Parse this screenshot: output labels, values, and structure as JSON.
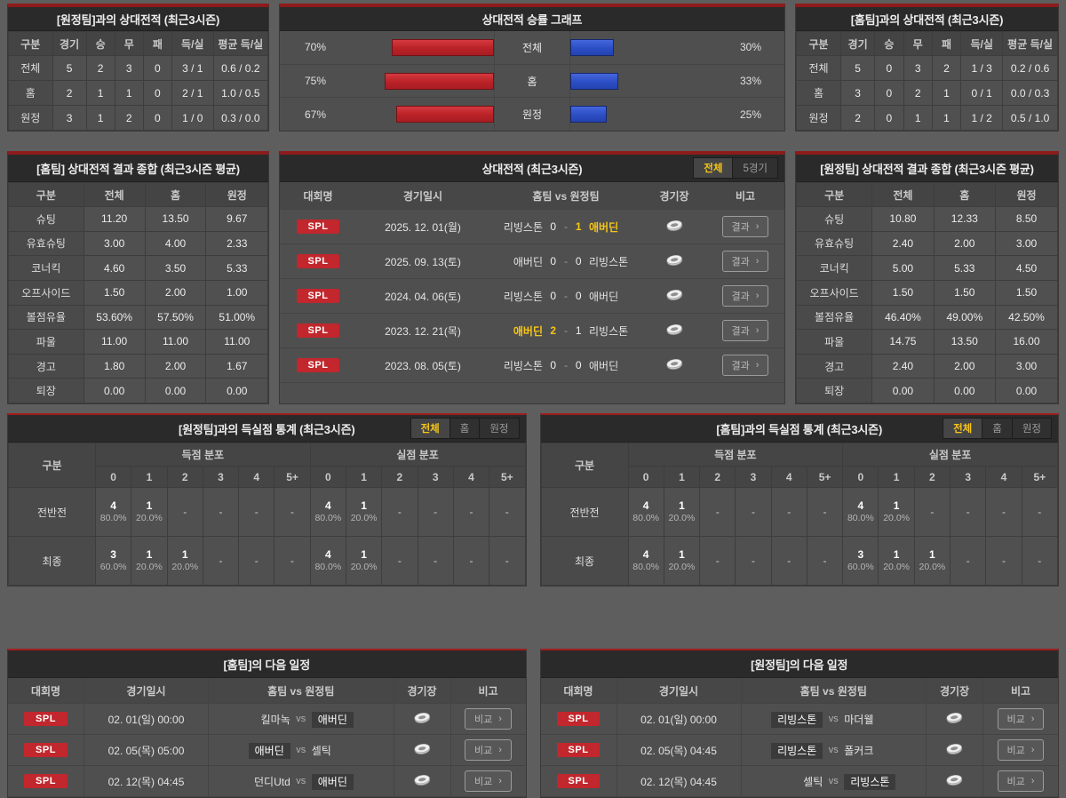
{
  "colors": {
    "accent_red": "#c1272d",
    "bar_red": "#b92228",
    "bar_blue": "#2c4ec4",
    "highlight_yellow": "#f5c518"
  },
  "panels": {
    "record_vs_away": {
      "title": "[원정팀]과의 상대전적 (최근3시즌)",
      "headers": [
        "구분",
        "경기",
        "승",
        "무",
        "패",
        "득/실",
        "평균 득/실"
      ],
      "rows": [
        [
          "전체",
          "5",
          "2",
          "3",
          "0",
          "3 / 1",
          "0.6 / 0.2"
        ],
        [
          "홈",
          "2",
          "1",
          "1",
          "0",
          "2 / 1",
          "1.0 / 0.5"
        ],
        [
          "원정",
          "3",
          "1",
          "2",
          "0",
          "1 / 0",
          "0.3 / 0.0"
        ]
      ]
    },
    "winrate": {
      "title": "상대전적 승률 그래프",
      "chart_data": {
        "type": "bar",
        "orientation": "horizontal-paired",
        "categories": [
          "전체",
          "홈",
          "원정"
        ],
        "series": [
          {
            "name": "홈팀 승률(적색)",
            "color": "#b92228",
            "values": [
              70,
              75,
              67
            ]
          },
          {
            "name": "원정팀 승률(청색)",
            "color": "#2c4ec4",
            "values": [
              30,
              33,
              25
            ]
          }
        ],
        "value_labels_left": [
          "70%",
          "75%",
          "67%"
        ],
        "value_labels_right": [
          "30%",
          "33%",
          "25%"
        ],
        "xlim": [
          0,
          100
        ],
        "grid": false,
        "legend": "none"
      }
    },
    "record_vs_home": {
      "title": "[홈팀]과의 상대전적 (최근3시즌)",
      "headers": [
        "구분",
        "경기",
        "승",
        "무",
        "패",
        "득/실",
        "평균 득/실"
      ],
      "rows": [
        [
          "전체",
          "5",
          "0",
          "3",
          "2",
          "1 / 3",
          "0.2 / 0.6"
        ],
        [
          "홈",
          "3",
          "0",
          "2",
          "1",
          "0 / 1",
          "0.0 / 0.3"
        ],
        [
          "원정",
          "2",
          "0",
          "1",
          "1",
          "1 / 2",
          "0.5 / 1.0"
        ]
      ]
    },
    "home_summary": {
      "title": "[홈팀] 상대전적 결과 종합 (최근3시즌 평균)",
      "headers": [
        "구분",
        "전체",
        "홈",
        "원정"
      ],
      "rows": [
        [
          "슈팅",
          "11.20",
          "13.50",
          "9.67"
        ],
        [
          "유효슈팅",
          "3.00",
          "4.00",
          "2.33"
        ],
        [
          "코너킥",
          "4.60",
          "3.50",
          "5.33"
        ],
        [
          "오프사이드",
          "1.50",
          "2.00",
          "1.00"
        ],
        [
          "볼점유율",
          "53.60%",
          "57.50%",
          "51.00%"
        ],
        [
          "파울",
          "11.00",
          "11.00",
          "11.00"
        ],
        [
          "경고",
          "1.80",
          "2.00",
          "1.67"
        ],
        [
          "퇴장",
          "0.00",
          "0.00",
          "0.00"
        ]
      ]
    },
    "h2h": {
      "title": "상대전적 (최근3시즌)",
      "tabs": [
        "전체",
        "5경기"
      ],
      "active_tab": 0,
      "headers": [
        "대회명",
        "경기일시",
        "홈팀  vs  원정팀",
        "경기장",
        "비고"
      ],
      "action_label": "결과",
      "chevron": "›",
      "score_separator": "-",
      "rows": [
        {
          "league": "SPL",
          "date": "2025. 12. 01(월)",
          "home": "리빙스톤",
          "home_score": "0",
          "away_score": "1",
          "away": "애버딘",
          "winner": "away"
        },
        {
          "league": "SPL",
          "date": "2025. 09. 13(토)",
          "home": "애버딘",
          "home_score": "0",
          "away_score": "0",
          "away": "리빙스톤",
          "winner": "none"
        },
        {
          "league": "SPL",
          "date": "2024. 04. 06(토)",
          "home": "리빙스톤",
          "home_score": "0",
          "away_score": "0",
          "away": "애버딘",
          "winner": "none"
        },
        {
          "league": "SPL",
          "date": "2023. 12. 21(목)",
          "home": "애버딘",
          "home_score": "2",
          "away_score": "1",
          "away": "리빙스톤",
          "winner": "home"
        },
        {
          "league": "SPL",
          "date": "2023. 08. 05(토)",
          "home": "리빙스톤",
          "home_score": "0",
          "away_score": "0",
          "away": "애버딘",
          "winner": "none"
        }
      ]
    },
    "away_summary": {
      "title": "[원정팀] 상대전적 결과 종합 (최근3시즌 평균)",
      "headers": [
        "구분",
        "전체",
        "홈",
        "원정"
      ],
      "rows": [
        [
          "슈팅",
          "10.80",
          "12.33",
          "8.50"
        ],
        [
          "유효슈팅",
          "2.40",
          "2.00",
          "3.00"
        ],
        [
          "코너킥",
          "5.00",
          "5.33",
          "4.50"
        ],
        [
          "오프사이드",
          "1.50",
          "1.50",
          "1.50"
        ],
        [
          "볼점유율",
          "46.40%",
          "49.00%",
          "42.50%"
        ],
        [
          "파울",
          "14.75",
          "13.50",
          "16.00"
        ],
        [
          "경고",
          "2.40",
          "2.00",
          "3.00"
        ],
        [
          "퇴장",
          "0.00",
          "0.00",
          "0.00"
        ]
      ]
    },
    "goals_vs_away": {
      "title": "[원정팀]과의 득실점 통계 (최근3시즌)",
      "tabs": [
        "전체",
        "홈",
        "원정"
      ],
      "active_tab": 0,
      "corner_label": "구분",
      "group_labels": [
        "득점 분포",
        "실점 분포"
      ],
      "score_cols": [
        "0",
        "1",
        "2",
        "3",
        "4",
        "5+"
      ],
      "empty_cell": "-",
      "rows": [
        {
          "label": "전반전",
          "scored": [
            [
              "4",
              "80.0%"
            ],
            [
              "1",
              "20.0%"
            ],
            null,
            null,
            null,
            null
          ],
          "conceded": [
            [
              "4",
              "80.0%"
            ],
            [
              "1",
              "20.0%"
            ],
            null,
            null,
            null,
            null
          ]
        },
        {
          "label": "최종",
          "scored": [
            [
              "3",
              "60.0%"
            ],
            [
              "1",
              "20.0%"
            ],
            [
              "1",
              "20.0%"
            ],
            null,
            null,
            null
          ],
          "conceded": [
            [
              "4",
              "80.0%"
            ],
            [
              "1",
              "20.0%"
            ],
            null,
            null,
            null,
            null
          ]
        }
      ]
    },
    "goals_vs_home": {
      "title": "[홈팀]과의 득실점 통계 (최근3시즌)",
      "tabs": [
        "전체",
        "홈",
        "원정"
      ],
      "active_tab": 0,
      "corner_label": "구분",
      "group_labels": [
        "득점 분포",
        "실점 분포"
      ],
      "score_cols": [
        "0",
        "1",
        "2",
        "3",
        "4",
        "5+"
      ],
      "empty_cell": "-",
      "rows": [
        {
          "label": "전반전",
          "scored": [
            [
              "4",
              "80.0%"
            ],
            [
              "1",
              "20.0%"
            ],
            null,
            null,
            null,
            null
          ],
          "conceded": [
            [
              "4",
              "80.0%"
            ],
            [
              "1",
              "20.0%"
            ],
            null,
            null,
            null,
            null
          ]
        },
        {
          "label": "최종",
          "scored": [
            [
              "4",
              "80.0%"
            ],
            [
              "1",
              "20.0%"
            ],
            null,
            null,
            null,
            null
          ],
          "conceded": [
            [
              "3",
              "60.0%"
            ],
            [
              "1",
              "20.0%"
            ],
            [
              "1",
              "20.0%"
            ],
            null,
            null,
            null
          ]
        }
      ]
    },
    "home_schedule": {
      "title": "[홈팀]의 다음 일정",
      "headers": [
        "대회명",
        "경기일시",
        "홈팀  vs  원정팀",
        "경기장",
        "비고"
      ],
      "action_label": "비교",
      "chevron": "›",
      "vs_label": "vs",
      "rows": [
        {
          "league": "SPL",
          "date": "02. 01(일) 00:00",
          "home": "킬마녹",
          "away": "애버딘",
          "highlight": "away"
        },
        {
          "league": "SPL",
          "date": "02. 05(목) 05:00",
          "home": "애버딘",
          "away": "셀틱",
          "highlight": "home"
        },
        {
          "league": "SPL",
          "date": "02. 12(목) 04:45",
          "home": "던디Utd",
          "away": "애버딘",
          "highlight": "away"
        }
      ]
    },
    "away_schedule": {
      "title": "[원정팀]의 다음 일정",
      "headers": [
        "대회명",
        "경기일시",
        "홈팀  vs  원정팀",
        "경기장",
        "비고"
      ],
      "action_label": "비교",
      "chevron": "›",
      "vs_label": "vs",
      "rows": [
        {
          "league": "SPL",
          "date": "02. 01(일) 00:00",
          "home": "리빙스톤",
          "away": "마더웰",
          "highlight": "home"
        },
        {
          "league": "SPL",
          "date": "02. 05(목) 04:45",
          "home": "리빙스톤",
          "away": "폴커크",
          "highlight": "home"
        },
        {
          "league": "SPL",
          "date": "02. 12(목) 04:45",
          "home": "셀틱",
          "away": "리빙스톤",
          "highlight": "away"
        }
      ]
    }
  }
}
